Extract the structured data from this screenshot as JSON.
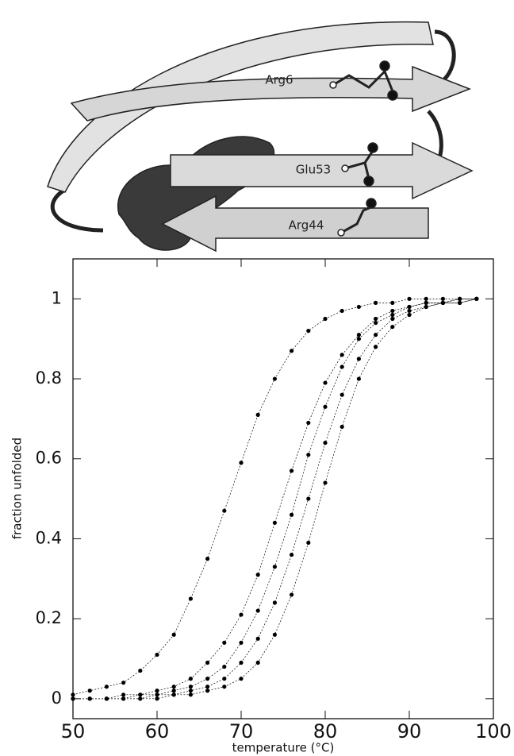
{
  "diagram": {
    "labels": [
      "Arg6",
      "Glu53",
      "Arg44"
    ]
  },
  "chart_data": {
    "type": "line",
    "xlabel": "temperature (°C)",
    "ylabel": "fraction unfolded",
    "x": [
      50,
      52,
      54,
      56,
      58,
      60,
      62,
      64,
      66,
      68,
      70,
      72,
      74,
      76,
      78,
      80,
      82,
      84,
      86,
      88,
      90,
      92,
      94,
      96,
      98
    ],
    "series": [
      {
        "color": "#000000",
        "values": [
          0.01,
          0.02,
          0.03,
          0.04,
          0.07,
          0.11,
          0.16,
          0.25,
          0.35,
          0.47,
          0.59,
          0.71,
          0.8,
          0.87,
          0.92,
          0.95,
          0.97,
          0.98,
          0.99,
          0.99,
          1,
          1,
          1,
          1,
          1
        ]
      },
      {
        "color": "#000000",
        "values": [
          0,
          0,
          0,
          0.01,
          0.01,
          0.02,
          0.03,
          0.05,
          0.09,
          0.14,
          0.21,
          0.31,
          0.44,
          0.57,
          0.69,
          0.79,
          0.86,
          0.91,
          0.95,
          0.97,
          0.98,
          0.99,
          0.99,
          1,
          1
        ]
      },
      {
        "color": "#000000",
        "values": [
          0,
          0,
          0,
          0,
          0.01,
          0.01,
          0.02,
          0.03,
          0.05,
          0.08,
          0.14,
          0.22,
          0.33,
          0.46,
          0.61,
          0.73,
          0.83,
          0.9,
          0.94,
          0.96,
          0.98,
          0.99,
          0.99,
          1,
          1
        ]
      },
      {
        "color": "#000000",
        "values": [
          0,
          0,
          0,
          0,
          0,
          0.01,
          0.01,
          0.02,
          0.03,
          0.05,
          0.09,
          0.15,
          0.24,
          0.36,
          0.5,
          0.64,
          0.76,
          0.85,
          0.91,
          0.95,
          0.97,
          0.98,
          0.99,
          0.99,
          1
        ]
      },
      {
        "color": "#000000",
        "values": [
          0,
          0,
          0,
          0,
          0,
          0,
          0.01,
          0.01,
          0.02,
          0.03,
          0.05,
          0.09,
          0.16,
          0.26,
          0.39,
          0.54,
          0.68,
          0.8,
          0.88,
          0.93,
          0.96,
          0.98,
          0.99,
          0.99,
          1
        ]
      }
    ],
    "xlim": [
      50,
      100
    ],
    "xticks": [
      50,
      60,
      70,
      80,
      90,
      100
    ],
    "ylim": [
      -0.05,
      1.1
    ],
    "yticks": [
      0,
      0.2,
      0.4,
      0.6,
      0.8,
      1
    ],
    "grid": false
  }
}
